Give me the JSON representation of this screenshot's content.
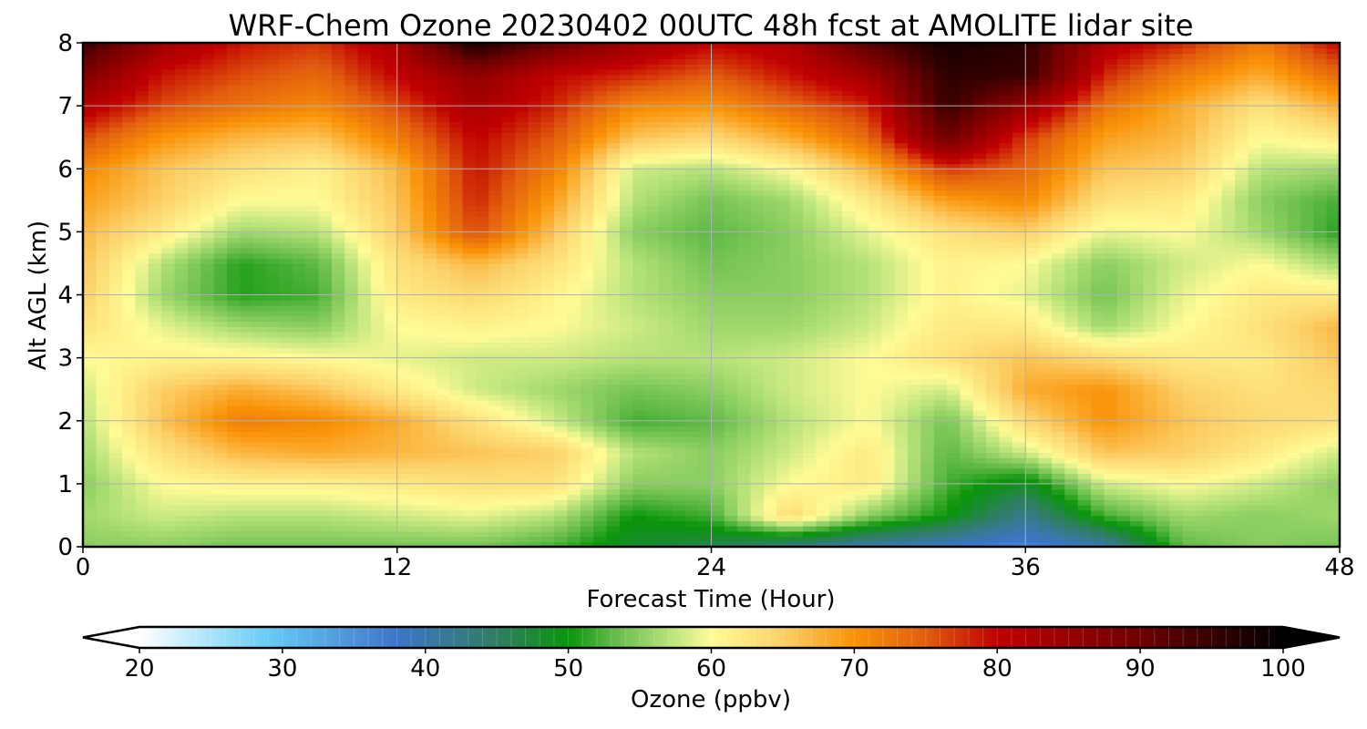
{
  "chart_data": {
    "type": "heatmap",
    "title": "WRF-Chem Ozone  20230402 00UTC 48h fcst at AMOLITE lidar site",
    "xlabel": "Forecast Time (Hour)",
    "ylabel": "Alt AGL (km)",
    "xlim": [
      0,
      48
    ],
    "ylim": [
      0,
      8
    ],
    "x_ticks": [
      "0",
      "12",
      "24",
      "36",
      "48"
    ],
    "y_ticks": [
      "0",
      "1",
      "2",
      "3",
      "4",
      "5",
      "6",
      "7",
      "8"
    ],
    "grid": true,
    "x": [
      0,
      3,
      6,
      9,
      12,
      15,
      18,
      21,
      24,
      27,
      30,
      33,
      36,
      39,
      42,
      45,
      48
    ],
    "y": [
      0,
      0.5,
      1,
      1.5,
      2,
      2.5,
      3,
      3.5,
      4,
      4.5,
      5,
      5.5,
      6,
      6.5,
      7,
      7.5,
      8
    ],
    "z_rows_by_altitude": [
      [
        55,
        55,
        54,
        54,
        54,
        54,
        52,
        48,
        46,
        42,
        40,
        38,
        36,
        40,
        53,
        55,
        54
      ],
      [
        56,
        58,
        57,
        57,
        58,
        59,
        57,
        50,
        52,
        64,
        55,
        50,
        42,
        52,
        56,
        55,
        56
      ],
      [
        55,
        60,
        61,
        61,
        62,
        63,
        63,
        55,
        55,
        60,
        62,
        52,
        48,
        58,
        60,
        58,
        55
      ],
      [
        56,
        63,
        67,
        68,
        67,
        66,
        65,
        57,
        55,
        58,
        62,
        53,
        58,
        66,
        65,
        62,
        58
      ],
      [
        57,
        66,
        72,
        71,
        68,
        63,
        58,
        52,
        53,
        57,
        60,
        54,
        64,
        70,
        66,
        64,
        63
      ],
      [
        58,
        65,
        68,
        66,
        62,
        58,
        56,
        54,
        55,
        58,
        60,
        58,
        68,
        70,
        65,
        63,
        64
      ],
      [
        60,
        61,
        61,
        60,
        59,
        58,
        58,
        57,
        57,
        58,
        60,
        63,
        66,
        64,
        62,
        62,
        66
      ],
      [
        63,
        59,
        56,
        55,
        60,
        61,
        60,
        58,
        56,
        56,
        58,
        62,
        62,
        56,
        60,
        63,
        67
      ],
      [
        65,
        56,
        51,
        52,
        62,
        64,
        61,
        57,
        55,
        55,
        57,
        61,
        59,
        54,
        59,
        62,
        62
      ],
      [
        66,
        57,
        51,
        53,
        63,
        67,
        63,
        57,
        54,
        55,
        57,
        61,
        60,
        55,
        58,
        60,
        56
      ],
      [
        67,
        62,
        56,
        57,
        65,
        76,
        66,
        55,
        53,
        55,
        59,
        63,
        65,
        59,
        60,
        56,
        51
      ],
      [
        69,
        65,
        60,
        60,
        66,
        78,
        69,
        57,
        54,
        56,
        62,
        69,
        71,
        63,
        62,
        55,
        52
      ],
      [
        71,
        66,
        63,
        61,
        67,
        79,
        72,
        58,
        57,
        60,
        67,
        77,
        74,
        66,
        65,
        57,
        56
      ],
      [
        76,
        70,
        67,
        66,
        72,
        80,
        75,
        66,
        64,
        68,
        74,
        90,
        77,
        69,
        67,
        60,
        62
      ],
      [
        82,
        76,
        73,
        71,
        76,
        83,
        78,
        71,
        70,
        74,
        78,
        95,
        85,
        73,
        68,
        63,
        68
      ],
      [
        88,
        79,
        76,
        74,
        80,
        86,
        80,
        78,
        75,
        79,
        84,
        96,
        95,
        78,
        72,
        68,
        74
      ],
      [
        95,
        84,
        79,
        77,
        83,
        98,
        90,
        84,
        80,
        82,
        92,
        98,
        96,
        82,
        78,
        72,
        80
      ]
    ],
    "colorbar": {
      "label": "Ozone  (ppbv)",
      "ticks": [
        "20",
        "30",
        "40",
        "50",
        "60",
        "70",
        "80",
        "90",
        "100"
      ],
      "min": 20,
      "max": 100,
      "extend": "both",
      "stops": [
        {
          "value": 20,
          "color": "#ffffff"
        },
        {
          "value": 29,
          "color": "#66ccf6"
        },
        {
          "value": 38,
          "color": "#3f74c9"
        },
        {
          "value": 45,
          "color": "#2f7e63"
        },
        {
          "value": 50,
          "color": "#0a950a"
        },
        {
          "value": 53,
          "color": "#5fb947"
        },
        {
          "value": 57,
          "color": "#b6e27a"
        },
        {
          "value": 60,
          "color": "#fffb96"
        },
        {
          "value": 65,
          "color": "#fcd068"
        },
        {
          "value": 70,
          "color": "#f99308"
        },
        {
          "value": 75,
          "color": "#e25d0e"
        },
        {
          "value": 80,
          "color": "#c00000"
        },
        {
          "value": 90,
          "color": "#6e0000"
        },
        {
          "value": 100,
          "color": "#000000"
        }
      ]
    }
  }
}
